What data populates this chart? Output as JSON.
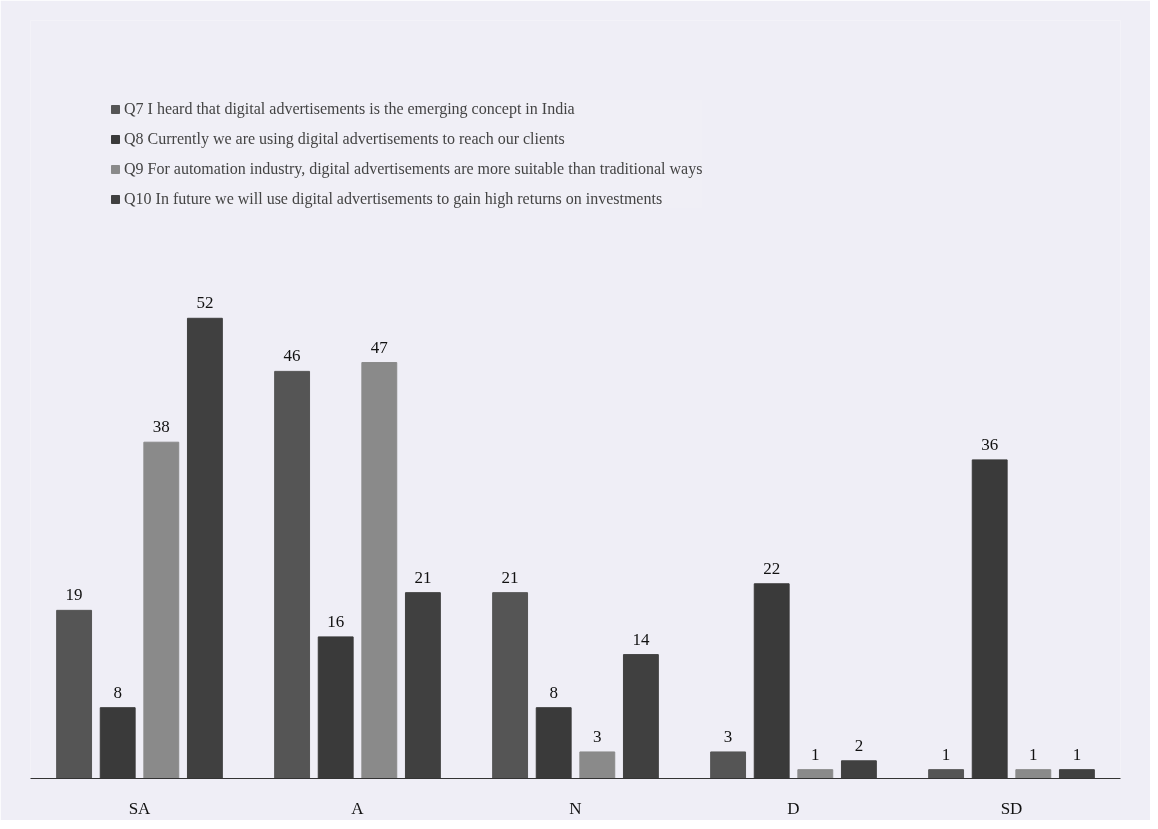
{
  "chart_data": {
    "type": "bar",
    "categories": [
      "SA",
      "A",
      "N",
      "D",
      "SD"
    ],
    "series": [
      {
        "name": "Q7 I heard that digital advertisements is the emerging concept in India",
        "color": "#555555",
        "values": [
          19,
          46,
          21,
          3,
          1
        ]
      },
      {
        "name": "Q8 Currently we are using digital advertisements to reach our clients",
        "color": "#3a3a3a",
        "values": [
          8,
          16,
          8,
          22,
          36
        ]
      },
      {
        "name": "Q9 For automation industry, digital advertisements are more suitable than traditional ways",
        "color": "#8a8a8a",
        "values": [
          38,
          47,
          3,
          1,
          1
        ]
      },
      {
        "name": "Q10 In future we will use digital advertisements to gain high returns on investments",
        "color": "#404040",
        "values": [
          52,
          21,
          14,
          2,
          1
        ]
      }
    ],
    "data_labels": true,
    "legend": "top",
    "grid": false
  }
}
